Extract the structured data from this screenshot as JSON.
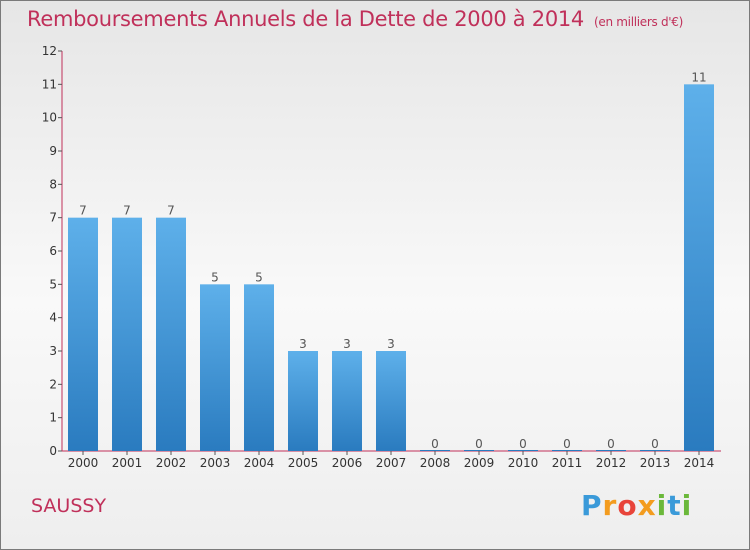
{
  "chart_data": {
    "type": "bar",
    "title": "Remboursements Annuels de la Dette de 2000 à 2014",
    "unit": "(en milliers d'€)",
    "categories": [
      "2000",
      "2001",
      "2002",
      "2003",
      "2004",
      "2005",
      "2006",
      "2007",
      "2008",
      "2009",
      "2010",
      "2011",
      "2012",
      "2013",
      "2014"
    ],
    "values": [
      7,
      7,
      7,
      5,
      5,
      3,
      3,
      3,
      0,
      0,
      0,
      0,
      0,
      0,
      11
    ],
    "ylim": [
      0,
      12
    ],
    "yticks": [
      0,
      1,
      2,
      3,
      4,
      5,
      6,
      7,
      8,
      9,
      10,
      11,
      12
    ],
    "grid": false,
    "bar_color_top": "#5eb0ea",
    "bar_color_bottom": "#2a7bbf",
    "axis_color": "#c0305a"
  },
  "commune": "SAUSSY",
  "logo": {
    "letters": [
      "P",
      "r",
      "o",
      "x",
      "i",
      "t",
      "i"
    ],
    "colors": [
      "#3a9ad9",
      "#f39c1f",
      "#e8443a",
      "#f39c1f",
      "#6bb83a",
      "#3a9ad9",
      "#6bb83a"
    ]
  }
}
